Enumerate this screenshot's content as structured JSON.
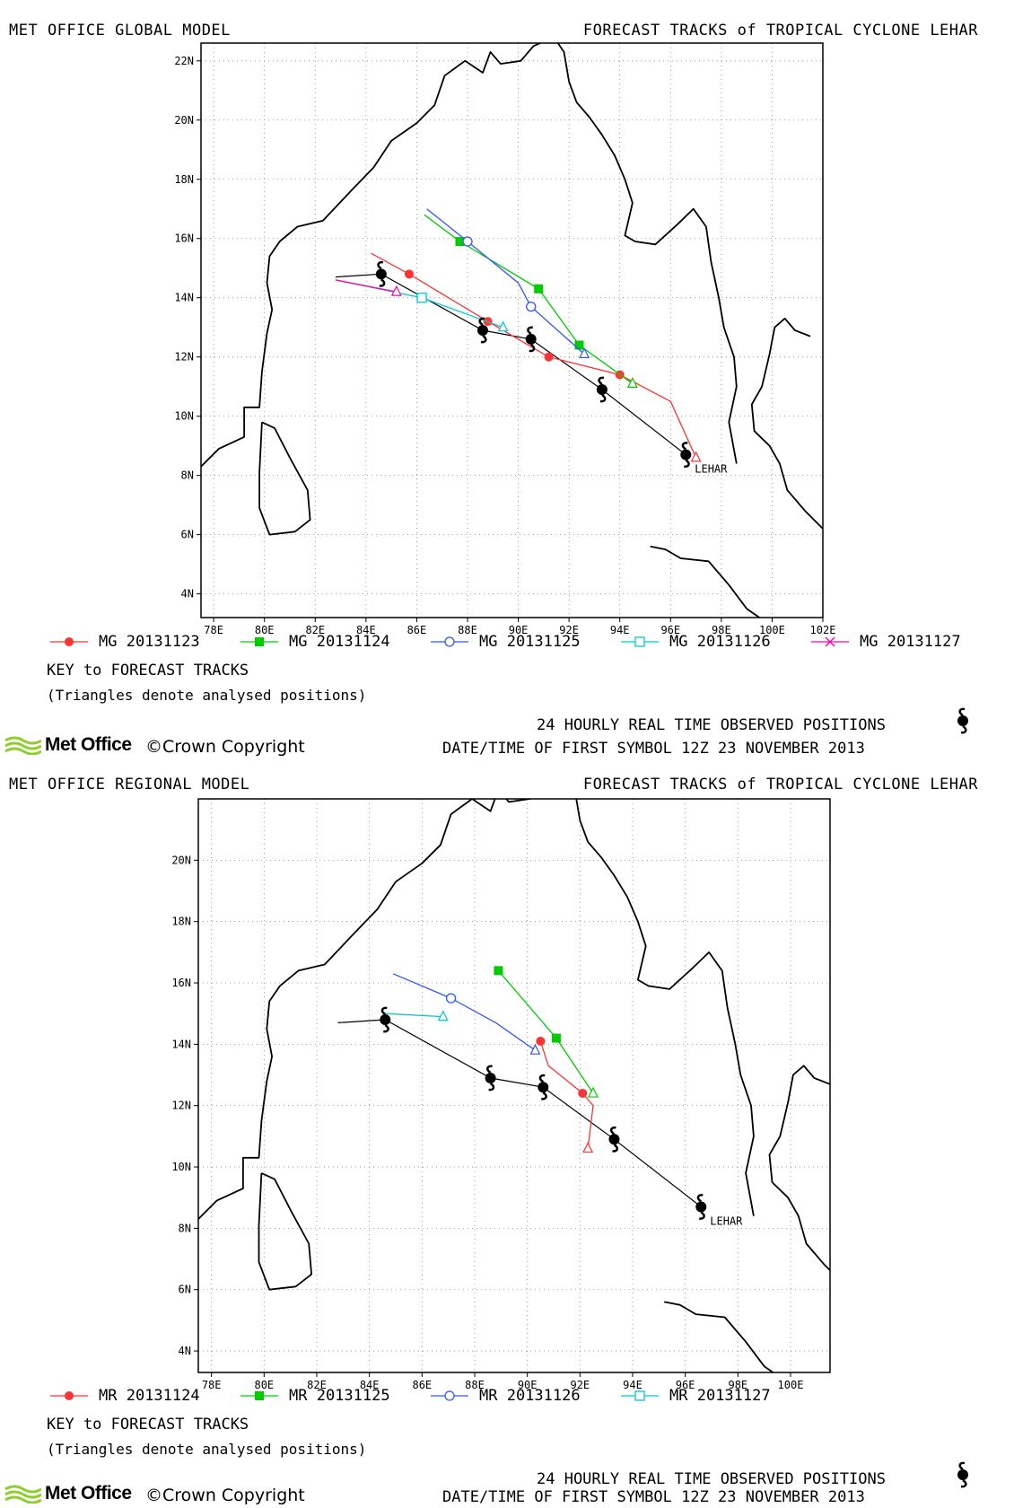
{
  "panels": [
    {
      "id": "global",
      "model_label": "MET OFFICE GLOBAL MODEL",
      "title": "FORECAST TRACKS of TROPICAL CYCLONE LEHAR",
      "storm_label": "LEHAR",
      "map": {
        "lon_range": [
          77.5,
          102
        ],
        "lat_range": [
          3.2,
          22.6
        ],
        "lon_ticks": [
          "78E",
          "80E",
          "82E",
          "84E",
          "86E",
          "88E",
          "90E",
          "92E",
          "94E",
          "96E",
          "98E",
          "100E",
          "102E"
        ],
        "lat_ticks": [
          "4N",
          "6N",
          "8N",
          "10N",
          "12N",
          "14N",
          "16N",
          "18N",
          "20N",
          "22N"
        ],
        "grid": "dotted"
      },
      "legend": [
        {
          "label": "MG 20131123",
          "color": "#ff3333",
          "symbol": "filled-circle"
        },
        {
          "label": "MG 20131124",
          "color": "#00cc00",
          "symbol": "filled-square"
        },
        {
          "label": "MG 20131125",
          "color": "#3355ff",
          "symbol": "open-circle"
        },
        {
          "label": "MG 20131126",
          "color": "#00cccc",
          "symbol": "open-square"
        },
        {
          "label": "MG 20131127",
          "color": "#ff00aa",
          "symbol": "cross"
        }
      ],
      "key_title": "KEY to FORECAST TRACKS",
      "key_note": "(Triangles denote analysed positions)",
      "observed_label": "24 HOURLY REAL TIME OBSERVED POSITIONS",
      "datetime_label": "DATE/TIME OF FIRST SYMBOL 12Z 23 NOVEMBER 2013",
      "brand": "Met Office",
      "copyright": "Crown Copyright",
      "chart_data": {
        "type": "scatter",
        "observed_track": {
          "line": [
            [
              82.8,
              14.7
            ],
            [
              84.6,
              14.8
            ],
            [
              88.6,
              12.9
            ],
            [
              90.5,
              12.6
            ],
            [
              93.3,
              10.9
            ],
            [
              96.6,
              8.7
            ]
          ],
          "symbols": [
            [
              84.6,
              14.8
            ],
            [
              88.6,
              12.9
            ],
            [
              90.5,
              12.6
            ],
            [
              93.3,
              10.9
            ],
            [
              96.6,
              8.7
            ]
          ]
        },
        "series": [
          {
            "name": "MG 20131123",
            "color": "#ff3333",
            "symbol": "filled-circle",
            "line": [
              [
                84.2,
                15.5
              ],
              [
                85.7,
                14.8
              ],
              [
                88.8,
                13.2
              ],
              [
                91.2,
                12.0
              ],
              [
                94.0,
                11.4
              ],
              [
                96.0,
                10.5
              ],
              [
                97.0,
                8.6
              ]
            ],
            "markers": [
              [
                85.7,
                14.8
              ],
              [
                88.8,
                13.2
              ],
              [
                91.2,
                12.0
              ],
              [
                94.0,
                11.4
              ]
            ],
            "analysed": [
              97.0,
              8.6
            ]
          },
          {
            "name": "MG 20131124",
            "color": "#00cc00",
            "symbol": "filled-square",
            "line": [
              [
                86.3,
                16.8
              ],
              [
                87.7,
                15.9
              ],
              [
                90.8,
                14.3
              ],
              [
                92.4,
                12.4
              ],
              [
                94.5,
                11.1
              ]
            ],
            "markers": [
              [
                87.7,
                15.9
              ],
              [
                90.8,
                14.3
              ],
              [
                92.4,
                12.4
              ]
            ],
            "analysed": [
              94.5,
              11.1
            ]
          },
          {
            "name": "MG 20131125",
            "color": "#3355ff",
            "symbol": "open-circle",
            "line": [
              [
                86.4,
                17.0
              ],
              [
                88.0,
                15.9
              ],
              [
                90.0,
                14.5
              ],
              [
                90.5,
                13.7
              ],
              [
                92.6,
                12.1
              ]
            ],
            "markers": [
              [
                88.0,
                15.9
              ],
              [
                90.5,
                13.7
              ]
            ],
            "analysed": [
              92.6,
              12.1
            ]
          },
          {
            "name": "MG 20131126",
            "color": "#00cccc",
            "symbol": "open-square",
            "line": [
              [
                82.8,
                14.6
              ],
              [
                86.2,
                14.0
              ],
              [
                89.4,
                13.0
              ]
            ],
            "markers": [
              [
                86.2,
                14.0
              ]
            ],
            "analysed": [
              89.4,
              13.0
            ]
          },
          {
            "name": "MG 20131127",
            "color": "#ff00aa",
            "symbol": "cross",
            "line": [
              [
                82.8,
                14.6
              ],
              [
                85.2,
                14.2
              ]
            ],
            "markers": [],
            "analysed": [
              85.2,
              14.2
            ]
          }
        ]
      }
    },
    {
      "id": "regional",
      "model_label": "MET OFFICE REGIONAL MODEL",
      "title": "FORECAST TRACKS of TROPICAL CYCLONE LEHAR",
      "storm_label": "LEHAR",
      "map": {
        "lon_range": [
          77.5,
          101.5
        ],
        "lat_range": [
          3.3,
          22.0
        ],
        "lon_ticks": [
          "78E",
          "80E",
          "82E",
          "84E",
          "86E",
          "88E",
          "90E",
          "92E",
          "94E",
          "96E",
          "98E",
          "100E"
        ],
        "lat_ticks": [
          "4N",
          "6N",
          "8N",
          "10N",
          "12N",
          "14N",
          "16N",
          "18N",
          "20N"
        ],
        "grid": "dotted"
      },
      "legend": [
        {
          "label": "MR 20131124",
          "color": "#ff3333",
          "symbol": "filled-circle"
        },
        {
          "label": "MR 20131125",
          "color": "#00cc00",
          "symbol": "filled-square"
        },
        {
          "label": "MR 20131126",
          "color": "#3355ff",
          "symbol": "open-circle"
        },
        {
          "label": "MR 20131127",
          "color": "#00cccc",
          "symbol": "open-square"
        }
      ],
      "key_title": "KEY to FORECAST TRACKS",
      "key_note": "(Triangles denote analysed positions)",
      "observed_label": "24 HOURLY REAL TIME OBSERVED POSITIONS",
      "datetime_label": "DATE/TIME OF FIRST SYMBOL 12Z 23 NOVEMBER 2013",
      "brand": "Met Office",
      "copyright": "Crown Copyright",
      "chart_data": {
        "type": "scatter",
        "observed_track": {
          "line": [
            [
              82.8,
              14.7
            ],
            [
              84.6,
              14.8
            ],
            [
              88.6,
              12.9
            ],
            [
              90.6,
              12.6
            ],
            [
              93.3,
              10.9
            ],
            [
              96.6,
              8.7
            ]
          ],
          "symbols": [
            [
              84.6,
              14.8
            ],
            [
              88.6,
              12.9
            ],
            [
              90.6,
              12.6
            ],
            [
              93.3,
              10.9
            ],
            [
              96.6,
              8.7
            ]
          ]
        },
        "series": [
          {
            "name": "MR 20131124",
            "color": "#ff3333",
            "symbol": "filled-circle",
            "line": [
              [
                90.5,
                14.1
              ],
              [
                90.8,
                13.3
              ],
              [
                92.1,
                12.4
              ],
              [
                92.5,
                12.0
              ],
              [
                92.3,
                10.6
              ]
            ],
            "markers": [
              [
                90.5,
                14.1
              ],
              [
                92.1,
                12.4
              ]
            ],
            "analysed": [
              92.3,
              10.6
            ]
          },
          {
            "name": "MR 20131125",
            "color": "#00cc00",
            "symbol": "filled-square",
            "line": [
              [
                88.9,
                16.4
              ],
              [
                91.1,
                14.2
              ],
              [
                92.5,
                12.4
              ]
            ],
            "markers": [
              [
                88.9,
                16.4
              ],
              [
                91.1,
                14.2
              ]
            ],
            "analysed": [
              92.5,
              12.4
            ]
          },
          {
            "name": "MR 20131126",
            "color": "#3355ff",
            "symbol": "open-circle",
            "line": [
              [
                84.9,
                16.3
              ],
              [
                87.1,
                15.5
              ],
              [
                88.8,
                14.7
              ],
              [
                90.3,
                13.8
              ]
            ],
            "markers": [
              [
                87.1,
                15.5
              ]
            ],
            "analysed": [
              90.3,
              13.8
            ]
          },
          {
            "name": "MR 20131127",
            "color": "#00cccc",
            "symbol": "open-square",
            "line": [
              [
                84.6,
                15.0
              ],
              [
                86.8,
                14.9
              ]
            ],
            "markers": [],
            "analysed": [
              86.8,
              14.9
            ]
          }
        ]
      }
    }
  ]
}
